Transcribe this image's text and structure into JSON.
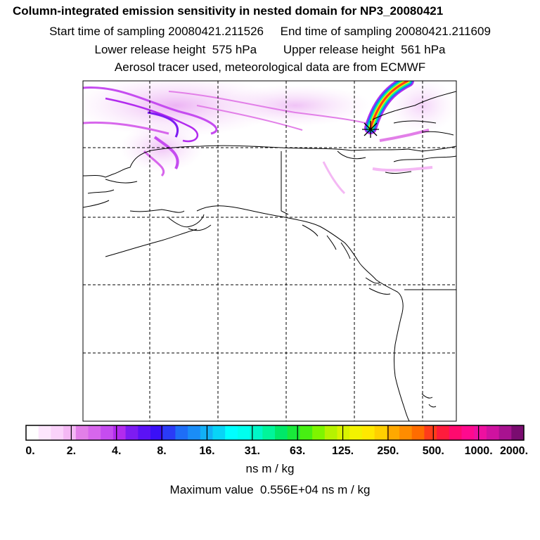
{
  "header": {
    "title": "Column-integrated emission sensitivity in nested domain for NP3_20080421",
    "sampling": "Start time of sampling 20080421.211526     End time of sampling 20080421.211609",
    "release": "Lower release height  575 hPa        Upper release height  561 hPa",
    "tracer": "Aerosol tracer used, meteorological data are from ECMWF"
  },
  "colorbar": {
    "labels": [
      "0.",
      "2.",
      "4.",
      "8.",
      "16.",
      "31.",
      "63.",
      "125.",
      "250.",
      "500.",
      "1000.",
      "2000."
    ],
    "colors": [
      "#ffffff",
      "#fde6fd",
      "#fad2fa",
      "#f4b8f4",
      "#e27fe8",
      "#d766ec",
      "#c54cf0",
      "#b22bee",
      "#7d1cf2",
      "#5b12f5",
      "#3a10f7",
      "#2a3bf7",
      "#1e6ef7",
      "#1a8df7",
      "#12b0f7",
      "#08d4f7",
      "#00ffff",
      "#00ffee",
      "#00f7c8",
      "#00f59a",
      "#00e868",
      "#19e83a",
      "#47ef12",
      "#7ef500",
      "#b6f200",
      "#d9f200",
      "#f2f200",
      "#ffe800",
      "#ffd000",
      "#ffa800",
      "#ff8c00",
      "#ff6c00",
      "#ff3c1a",
      "#ff1c3c",
      "#ff0a6e",
      "#ff0a8e",
      "#ee10a0",
      "#cf12a0",
      "#a81290",
      "#7a0c70"
    ],
    "units": "ns m / kg"
  },
  "footer": {
    "maximum": "Maximum value  0.556E+04 ns m / kg"
  },
  "map": {
    "release_marker_icon": "asterisk-icon",
    "plume_color": "#b42cf0",
    "coastline_color": "#000000",
    "gridline_style": "dashed"
  }
}
